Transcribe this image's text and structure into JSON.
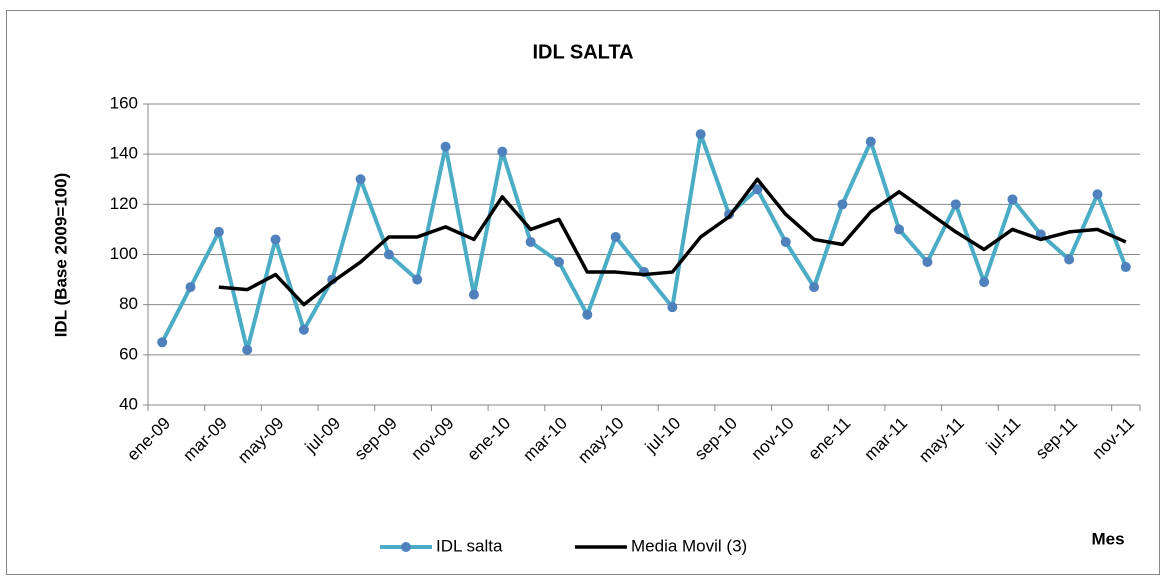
{
  "chart_data": {
    "type": "line",
    "title": "IDL SALTA",
    "y_label": "IDL (Base 2009=100)",
    "x_label": "Mes",
    "categories": [
      "ene-09",
      null,
      "mar-09",
      null,
      "may-09",
      null,
      "jul-09",
      null,
      "sep-09",
      null,
      "nov-09",
      null,
      "ene-10",
      null,
      "mar-10",
      null,
      "may-10",
      null,
      "jul-10",
      null,
      "sep-10",
      null,
      "nov-10",
      null,
      "ene-11",
      null,
      "mar-11",
      null,
      "may-11",
      null,
      "jul-11",
      null,
      "sep-11",
      null,
      "nov-11"
    ],
    "series": [
      {
        "name": "IDL salta",
        "color": "#4bacc6",
        "marker_color": "#4f81bd",
        "values": [
          65,
          87,
          109,
          62,
          106,
          70,
          90,
          130,
          100,
          90,
          143,
          84,
          141,
          105,
          97,
          76,
          107,
          93,
          79,
          148,
          116,
          126,
          105,
          87,
          120,
          145,
          110,
          97,
          120,
          89,
          122,
          108,
          98,
          124,
          95
        ]
      },
      {
        "name": "Media Movil (3)",
        "color": "#000000",
        "values": [
          null,
          null,
          87,
          86,
          92,
          80,
          89,
          97,
          107,
          107,
          111,
          106,
          123,
          110,
          114,
          93,
          93,
          92,
          93,
          107,
          115,
          130,
          116,
          106,
          104,
          117,
          125,
          117,
          109,
          102,
          110,
          106,
          109,
          110,
          105
        ]
      }
    ],
    "ylim": [
      40,
      160
    ],
    "yticks": [
      40,
      60,
      80,
      100,
      120,
      140,
      160
    ],
    "grid": true,
    "legend": "bottom"
  }
}
